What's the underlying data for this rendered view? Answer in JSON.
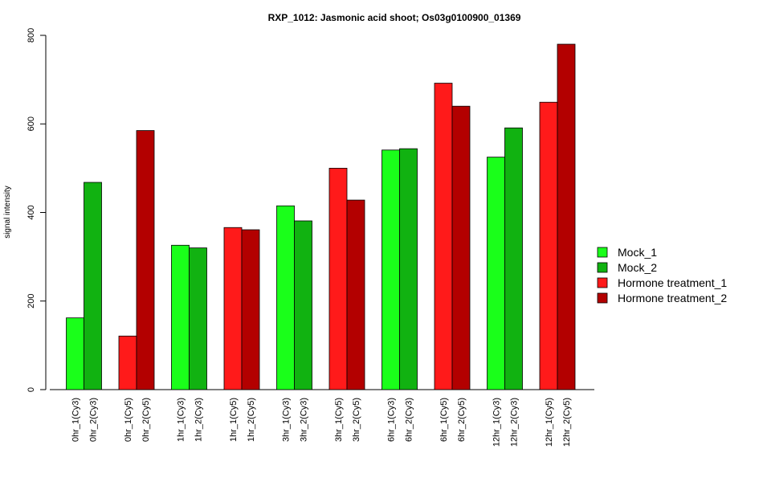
{
  "chart_data": {
    "type": "bar",
    "title": "RXP_1012: Jasmonic acid shoot; Os03g0100900_01369",
    "ylabel": "signal intensity",
    "xlabel": "",
    "ylim": [
      0,
      800
    ],
    "yticks": [
      0,
      200,
      400,
      600,
      800
    ],
    "grid": false,
    "legend_position": "right",
    "legend": [
      {
        "name": "Mock_1",
        "color": "#1aff1a"
      },
      {
        "name": "Mock_2",
        "color": "#11b211"
      },
      {
        "name": "Hormone treatment_1",
        "color": "#ff1a1a"
      },
      {
        "name": "Hormone treatment_2",
        "color": "#b30000"
      }
    ],
    "bars": [
      {
        "label": "0hr_1(Cy3)",
        "value": 162,
        "color": "#1aff1a"
      },
      {
        "label": "0hr_2(Cy3)",
        "value": 468,
        "color": "#11b211"
      },
      {
        "label": "0hr_1(Cy5)",
        "value": 121,
        "color": "#ff1a1a"
      },
      {
        "label": "0hr_2(Cy5)",
        "value": 585,
        "color": "#b30000"
      },
      {
        "label": "1hr_1(Cy3)",
        "value": 326,
        "color": "#1aff1a"
      },
      {
        "label": "1hr_2(Cy3)",
        "value": 320,
        "color": "#11b211"
      },
      {
        "label": "1hr_1(Cy5)",
        "value": 366,
        "color": "#ff1a1a"
      },
      {
        "label": "1hr_2(Cy5)",
        "value": 361,
        "color": "#b30000"
      },
      {
        "label": "3hr_1(Cy3)",
        "value": 415,
        "color": "#1aff1a"
      },
      {
        "label": "3hr_2(Cy3)",
        "value": 381,
        "color": "#11b211"
      },
      {
        "label": "3hr_1(Cy5)",
        "value": 500,
        "color": "#ff1a1a"
      },
      {
        "label": "3hr_2(Cy5)",
        "value": 428,
        "color": "#b30000"
      },
      {
        "label": "6hr_1(Cy3)",
        "value": 541,
        "color": "#1aff1a"
      },
      {
        "label": "6hr_2(Cy3)",
        "value": 544,
        "color": "#11b211"
      },
      {
        "label": "6hr_1(Cy5)",
        "value": 692,
        "color": "#ff1a1a"
      },
      {
        "label": "6hr_2(Cy5)",
        "value": 640,
        "color": "#b30000"
      },
      {
        "label": "12hr_1(Cy3)",
        "value": 525,
        "color": "#1aff1a"
      },
      {
        "label": "12hr_2(Cy3)",
        "value": 591,
        "color": "#11b211"
      },
      {
        "label": "12hr_1(Cy5)",
        "value": 649,
        "color": "#ff1a1a"
      },
      {
        "label": "12hr_2(Cy5)",
        "value": 780,
        "color": "#b30000"
      }
    ]
  }
}
